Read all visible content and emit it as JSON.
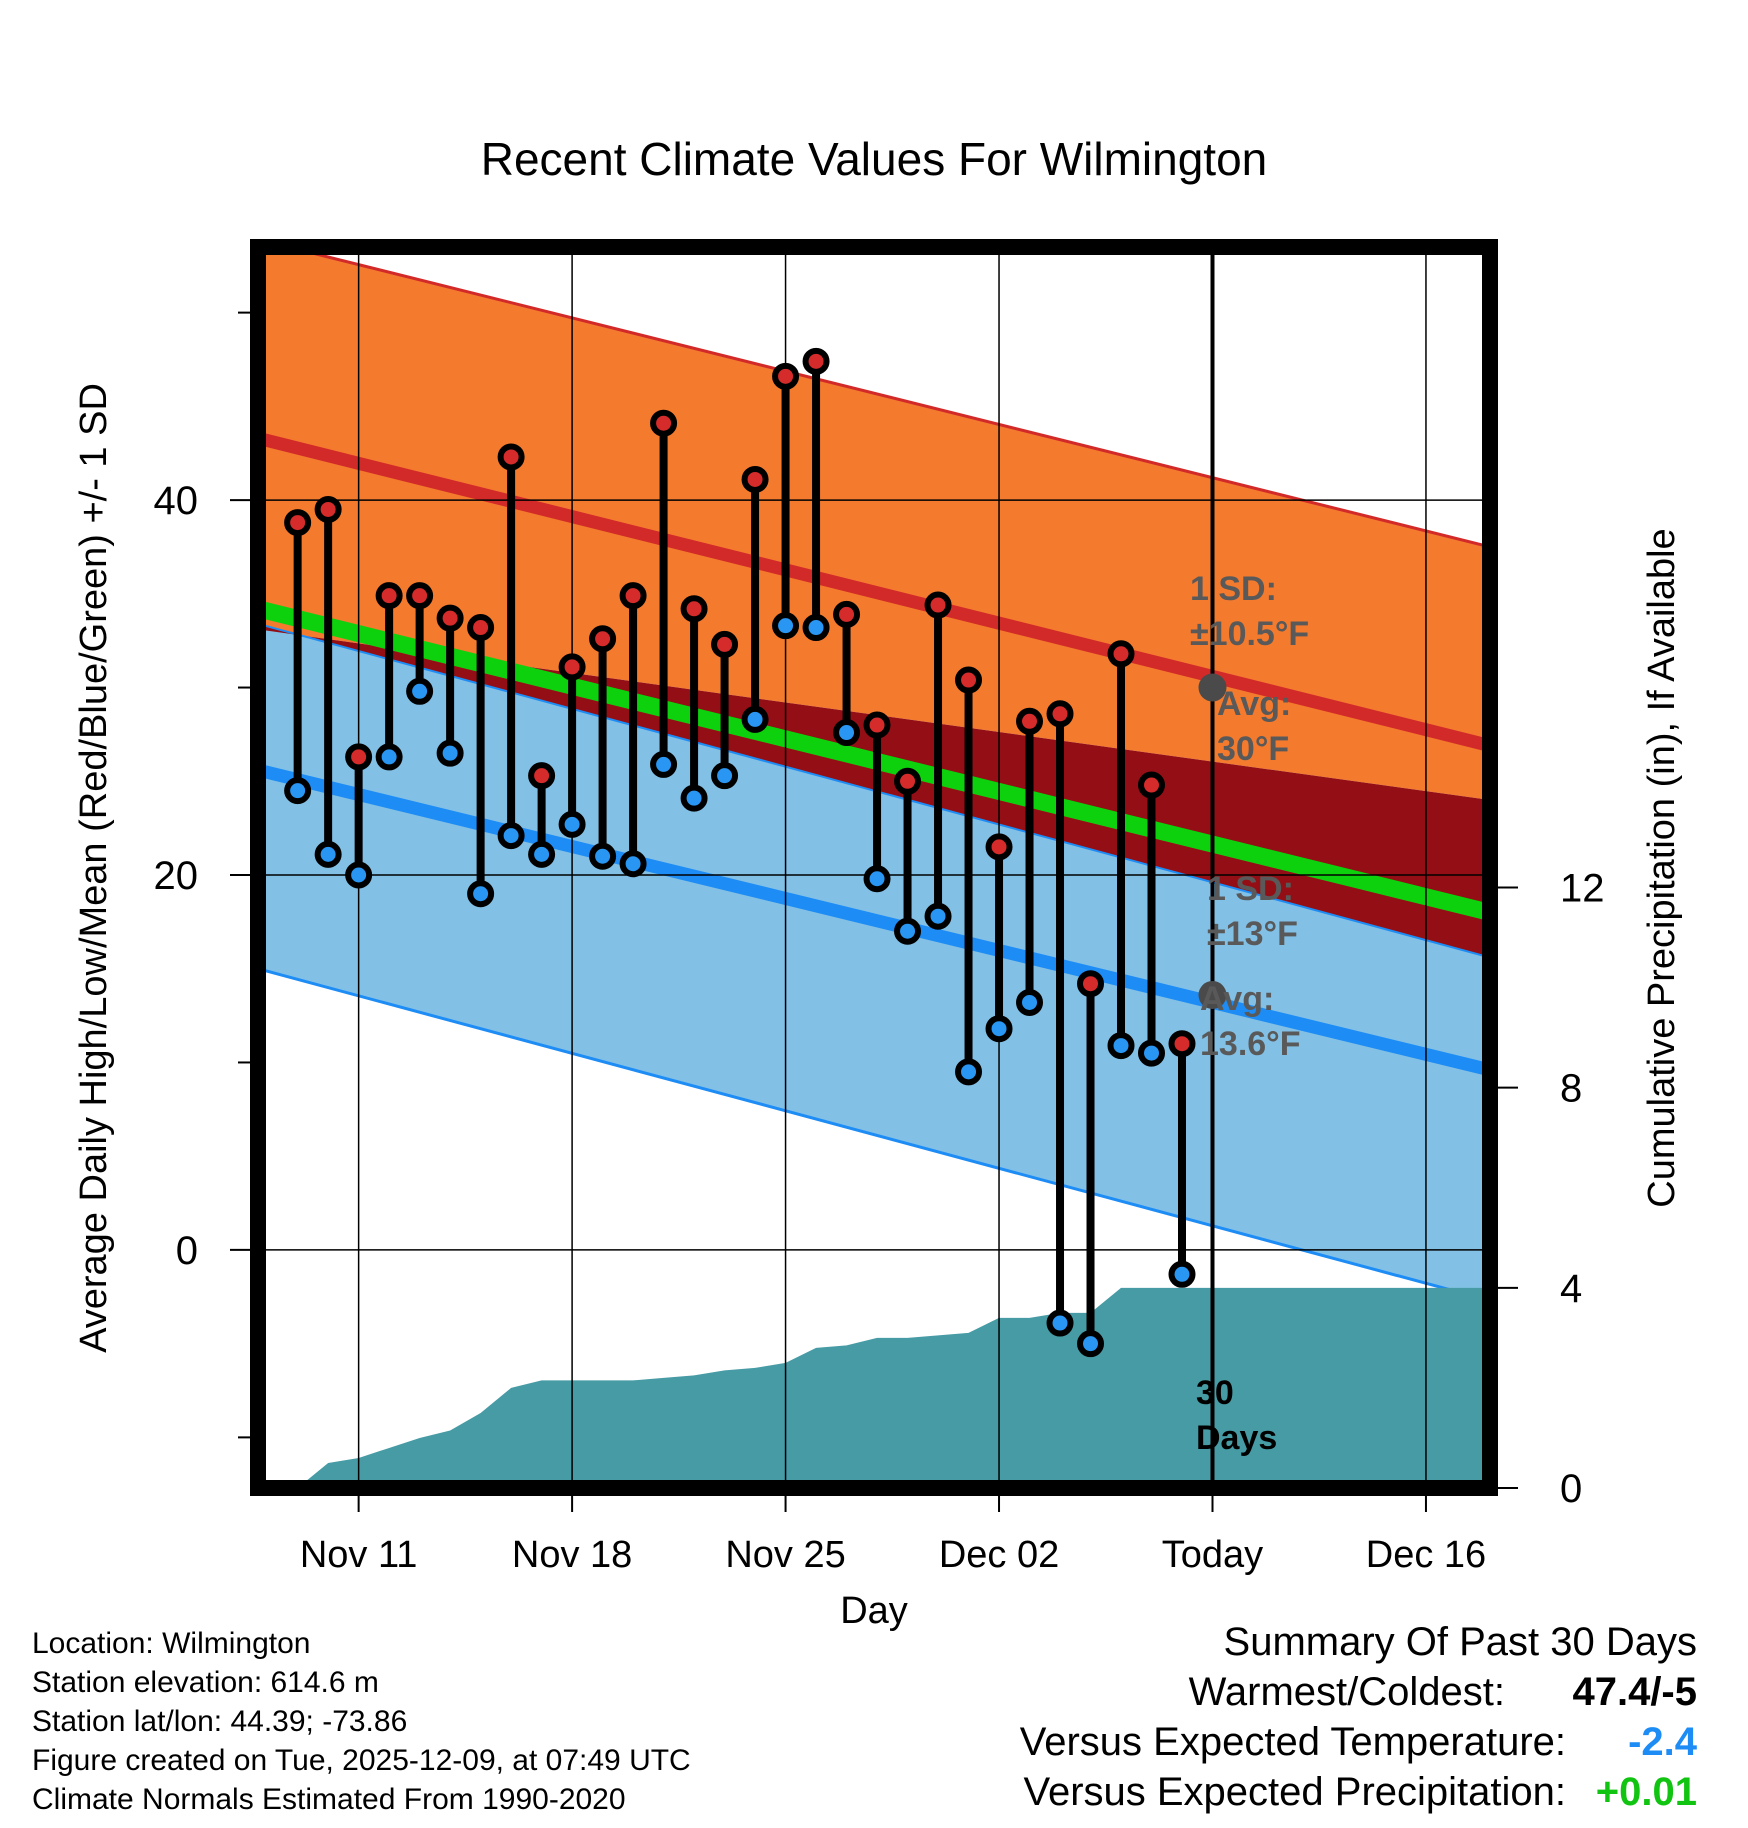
{
  "chart_data": {
    "type": "line",
    "title": "Recent Climate Values For Wilmington",
    "xlabel": "Day",
    "ylabel": "Average Daily High/Low/Mean (Red/Blue/Green) +/- 1 SD",
    "y2label": "Cumulative Precipitation (in), If Available",
    "xlim": [
      -2.3,
      38.1
    ],
    "ylim": [
      -12.7,
      53.5
    ],
    "y2lim": [
      0,
      24.8
    ],
    "x_tick_positions": [
      1,
      8,
      15,
      22,
      29,
      36
    ],
    "x_tick_labels": [
      "Nov 11",
      "Nov 18",
      "Nov 25",
      "Dec 02",
      "Today",
      "Dec 16"
    ],
    "y_ticks": [
      0,
      20,
      40
    ],
    "y2_ticks": [
      0,
      4,
      8,
      12
    ],
    "today_x": 29,
    "observations": {
      "x": [
        -1,
        0,
        1,
        2,
        3,
        4,
        5,
        6,
        7,
        8,
        9,
        10,
        11,
        12,
        13,
        14,
        15,
        16,
        17,
        18,
        19,
        20,
        21,
        22,
        23,
        24,
        25,
        26,
        27,
        28
      ],
      "high": [
        38.8,
        39.5,
        26.3,
        34.9,
        34.9,
        33.7,
        33.2,
        42.3,
        25.3,
        31.1,
        32.6,
        34.9,
        44.1,
        34.2,
        32.3,
        41.1,
        46.6,
        47.4,
        33.9,
        28.0,
        25.0,
        34.4,
        30.4,
        21.5,
        28.2,
        28.6,
        14.2,
        31.8,
        24.8,
        11.0
      ],
      "low": [
        24.5,
        21.1,
        20.0,
        26.3,
        29.8,
        26.5,
        19.0,
        22.1,
        21.1,
        22.7,
        21.0,
        20.6,
        25.9,
        24.1,
        25.3,
        28.3,
        33.3,
        33.2,
        27.6,
        19.8,
        17.0,
        17.8,
        9.5,
        11.8,
        13.2,
        -3.9,
        -5.0,
        10.9,
        10.5,
        -1.3
      ]
    },
    "normals": {
      "x": [
        -2.3,
        38.1
      ],
      "high_mean": [
        43.3,
        26.9
      ],
      "high_plus_sd": [
        53.9,
        37.5
      ],
      "high_minus_sd": [
        33.1,
        24.0
      ],
      "mean": [
        34.2,
        18.0
      ],
      "low_mean": [
        25.6,
        9.6
      ],
      "low_plus_sd": [
        33.4,
        15.6
      ],
      "low_minus_sd": [
        15.0,
        -2.7
      ]
    },
    "precipitation": {
      "x": [
        -2.3,
        -1,
        0,
        1,
        2,
        3,
        4,
        5,
        6,
        7,
        8,
        9,
        10,
        11,
        12,
        13,
        14,
        15,
        16,
        17,
        18,
        19,
        20,
        21,
        22,
        23,
        24,
        25,
        26,
        27,
        28,
        29,
        30,
        32,
        34,
        36,
        38.1
      ],
      "values": [
        0,
        0,
        0.5,
        0.6,
        0.8,
        1.0,
        1.15,
        1.5,
        2.0,
        2.15,
        2.15,
        2.15,
        2.15,
        2.2,
        2.25,
        2.35,
        2.4,
        2.5,
        2.8,
        2.85,
        3.0,
        3.0,
        3.05,
        3.1,
        3.4,
        3.4,
        3.5,
        3.5,
        4.0,
        4.0,
        4.0,
        4.0,
        4.0,
        4.0,
        4.0,
        4.0,
        4.0
      ]
    },
    "annotations": {
      "high_sd": [
        "1 SD:",
        "±10.5°F"
      ],
      "high_avg": [
        "Avg:",
        "30°F"
      ],
      "low_sd": [
        "1 SD:",
        "±13°F"
      ],
      "low_avg": [
        "Avg:",
        "13.6°F"
      ],
      "days": [
        "30",
        "Days"
      ]
    },
    "today_high_avg": 30,
    "today_low_avg": 13.6,
    "colors": {
      "high_band": "#f47a2e",
      "high_line": "#d22a28",
      "dark_band": "#930f15",
      "mean_line": "#0ed10e",
      "low_band": "#82c0e5",
      "low_line": "#1e8cf5",
      "precip": "#469ba5",
      "high_dot": "#d52b2b",
      "low_dot": "#2896f2",
      "annot": "#595959"
    }
  },
  "info": {
    "location": "Location: Wilmington",
    "elevation": "Station elevation: 614.6 m",
    "latlon": "Station lat/lon: 44.39; -73.86",
    "created": "Figure created on Tue, 2025-12-09, at 07:49 UTC",
    "normals": "Climate Normals Estimated From 1990-2020"
  },
  "summary": {
    "title": "Summary Of Past 30 Days",
    "warmest_label": "Warmest/Coldest:",
    "warmest_value": "47.4/-5",
    "temp_label": "Versus Expected Temperature:",
    "temp_value": "-2.4",
    "temp_color": "#1e8cf5",
    "precip_label": "Versus Expected Precipitation:",
    "precip_value": "+0.01",
    "precip_color": "#11c411"
  }
}
